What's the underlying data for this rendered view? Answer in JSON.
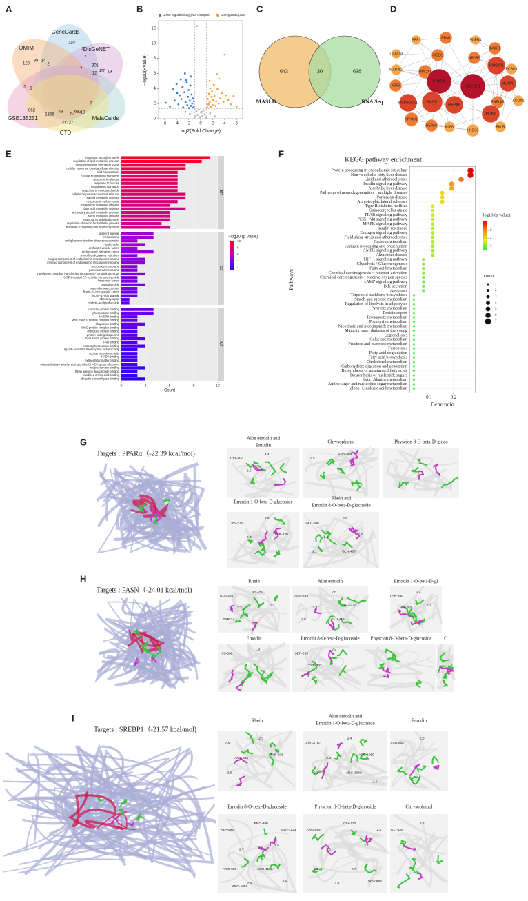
{
  "A": {
    "label": "A",
    "sets": [
      "GeneCards",
      "DisGeNET",
      "OMIM",
      "MalaCards",
      "GSE135251",
      "CTD"
    ],
    "colors": [
      "#9ec9e8",
      "#d8a6d8",
      "#f3b27a",
      "#a9d8d3",
      "#e8a0c0",
      "#f1e27a"
    ],
    "numbers": [
      110,
      3,
      19,
      450,
      301,
      123,
      98,
      14,
      2,
      7,
      12,
      11,
      5,
      1,
      862,
      1356,
      48,
      53,
      682,
      33727,
      18,
      7,
      4
    ]
  },
  "B": {
    "label": "B",
    "type": "scatter",
    "series": [
      {
        "name": "Down regulated(363)",
        "color": "#3a7fd5",
        "x": [
          -5.8,
          -5.1,
          -4.6,
          -4.3,
          -4.0,
          -3.7,
          -3.5,
          -3.2,
          -3.0,
          -2.9,
          -2.7,
          -2.5,
          -2.4,
          -2.2,
          -2.1,
          -2.0,
          -1.9,
          -1.8,
          -1.7,
          -1.6,
          -1.5,
          -1.4,
          -1.3,
          -1.2,
          -1.1,
          -3.9,
          -2.6,
          -3.3,
          -1.6,
          -2.3
        ],
        "y": [
          2.1,
          1.6,
          3.9,
          2.4,
          4.6,
          1.9,
          3.1,
          2.6,
          4.2,
          1.5,
          3.5,
          2.2,
          5.1,
          1.8,
          2.9,
          3.8,
          1.4,
          2.4,
          4.4,
          1.7,
          3.2,
          2.0,
          2.7,
          1.5,
          2.3,
          3.4,
          6.0,
          5.2,
          5.6,
          4.8
        ]
      },
      {
        "name": "Not changed",
        "color": "#b5b5b5",
        "x": [
          -0.9,
          -0.7,
          -0.5,
          -0.3,
          -0.1,
          0.1,
          0.3,
          0.5,
          0.7,
          0.9,
          -1.8,
          -2.5,
          1.6,
          2.4,
          -0.6,
          0.2
        ],
        "y": [
          0.3,
          1.0,
          0.5,
          1.2,
          0.2,
          0.8,
          0.4,
          1.1,
          0.6,
          0.2,
          0.6,
          0.9,
          0.7,
          0.3,
          12.3,
          0.9
        ]
      },
      {
        "name": "Up regulated(305)",
        "color": "#f0a040",
        "x": [
          1.1,
          1.2,
          1.3,
          1.4,
          1.5,
          1.6,
          1.7,
          1.8,
          1.9,
          2.0,
          2.1,
          2.2,
          2.3,
          2.5,
          2.6,
          2.8,
          3.0,
          3.1,
          3.3,
          3.5,
          3.8,
          4.0,
          4.2,
          4.6,
          5.0,
          5.5,
          6.0,
          2.7,
          1.5
        ],
        "y": [
          1.5,
          2.6,
          1.9,
          3.3,
          2.2,
          4.0,
          1.6,
          2.9,
          3.6,
          1.8,
          2.5,
          4.5,
          3.0,
          1.7,
          2.3,
          3.9,
          2.0,
          5.3,
          2.7,
          3.4,
          2.2,
          8.5,
          3.1,
          2.5,
          1.9,
          3.0,
          1.6,
          5.9,
          5.0
        ]
      }
    ],
    "thresholds": {
      "x": [
        -1,
        1
      ],
      "y": 1.3
    },
    "xlabel": "log2(Fold Change)",
    "ylabel": "-log10(Pvalue)",
    "xlim": [
      -7,
      7
    ],
    "ylim": [
      0,
      13
    ],
    "xticks": [
      -6,
      -4,
      -2,
      0,
      2,
      4,
      6
    ],
    "yticks": [
      0,
      2,
      4,
      6,
      8,
      10,
      12
    ]
  },
  "C": {
    "label": "C",
    "sets": [
      "MASLD",
      "RNA Seq"
    ],
    "colors": [
      "#f5c27a",
      "#a8dca0"
    ],
    "counts": [
      643,
      30,
      638
    ]
  },
  "D": {
    "label": "D",
    "nodes": [
      {
        "label": "SPP1",
        "color": "#f7a54a"
      },
      {
        "label": "ERN1",
        "color": "#ee7a36"
      },
      {
        "label": "FGFR4",
        "color": "#f7a54a"
      },
      {
        "label": "LGALS3",
        "color": "#f7a54a"
      },
      {
        "label": "CIDEC",
        "color": "#ee7a36"
      },
      {
        "label": "NR0B2",
        "color": "#ee7a36"
      },
      {
        "label": "INSIG1",
        "color": "#ee7a36"
      },
      {
        "label": "MAP3K2",
        "color": "#f7a54a"
      },
      {
        "label": "HMGCR",
        "color": "#d9442b"
      },
      {
        "label": "PCSK9",
        "color": "#f7a54a"
      },
      {
        "label": "HMOX1",
        "color": "#ee7a36"
      },
      {
        "label": "PPARA",
        "color": "#b5122b"
      },
      {
        "label": "SREBF1",
        "color": "#b5122b"
      },
      {
        "label": "MLXIPL",
        "color": "#d9442b"
      },
      {
        "label": "XBP1",
        "color": "#ee7a36"
      },
      {
        "label": "FASN",
        "color": "#d9442b"
      },
      {
        "label": "HSPA5",
        "color": "#d9442b"
      },
      {
        "label": "PNPLA3",
        "color": "#ee7a36"
      },
      {
        "label": "ACOX1",
        "color": "#f7a54a"
      },
      {
        "label": "HSP90AA1",
        "color": "#d9442b"
      },
      {
        "label": "PLIN2",
        "color": "#d9442b"
      },
      {
        "label": "HYOU1",
        "color": "#ee7a36"
      },
      {
        "label": "HSPA8",
        "color": "#ee7a36"
      },
      {
        "label": "KLF6",
        "color": "#f7a54a"
      },
      {
        "label": "PKLR",
        "color": "#f7a54a"
      },
      {
        "label": "HKDC1",
        "color": "#f7a54a"
      }
    ]
  },
  "E": {
    "label": "E",
    "type": "bar",
    "xlabel": "Count",
    "xlim": [
      0,
      12
    ],
    "xticks": [
      0,
      3,
      6,
      9,
      12
    ],
    "legend_title": "−log10 (p value)",
    "clim": [
      1,
      10
    ],
    "legend_ticks": [
      2,
      4,
      6,
      8,
      10
    ],
    "groups": [
      {
        "name": "BP",
        "terms": [
          "response to nutrient levels",
          "regulation of lipid metabolic process",
          "cellular response to nutrient levels",
          "cellular response to extracellular stimulus",
          "lipid homeostasis",
          "cellular response to starvation",
          "response to glucose",
          "response to hexose",
          "response to starvation",
          "response to monosaccharide",
          "cellular response to external stimulus",
          "steroid metabolic process",
          "response to carbohydrate",
          "cholesterol metabolic process",
          "fatty acid metabolic process",
          "secondary alcohol metabolic process",
          "sterol metabolic process",
          "response to unfolded protein",
          "regulation of steroid biosynthetic process",
          "response to topologically incorrect protein"
        ],
        "counts": [
          11,
          10,
          8,
          8,
          7,
          7,
          7,
          7,
          7,
          7,
          8,
          8,
          7,
          6,
          8,
          6,
          6,
          6,
          5,
          6
        ],
        "neglogp": [
          10,
          9.6,
          9.2,
          9,
          8.8,
          8.6,
          8.4,
          8.3,
          8.2,
          8.1,
          8,
          7.9,
          7.8,
          7.7,
          7.6,
          7.5,
          7.4,
          7.3,
          7.2,
          7.1
        ]
      },
      {
        "name": "CC",
        "terms": [
          "pigment granule",
          "melanosome",
          "endoplasmic reticulum chaperone complex",
          "lipid droplet",
          "endocytic vesicle lumen",
          "endoplasmic reticulum lumen",
          "smooth endoplasmic reticulum",
          "integral component of endoplasmic reticulum membrane",
          "intrinsic component of endoplasmic reticulum membrane",
          "microbody membrane",
          "peroxisomal membrane",
          "transferase complex, transferring phosphorus−containing groups",
          "COPII−coated ER to Golgi transport vesicle",
          "lysosomal lumen",
          "coated vesicle",
          "protein kinase complex",
          "ficolin−1−rich granule lumen",
          "ficolin−1−rich granule",
          "ribbon synapse",
          "clathrin−sculpted vesicle"
        ],
        "counts": [
          4,
          4,
          2,
          3,
          2,
          4,
          2,
          3,
          3,
          2,
          2,
          3,
          2,
          2,
          3,
          2,
          2,
          2,
          1,
          1
        ],
        "neglogp": [
          5,
          4.9,
          4.8,
          4.7,
          4.6,
          4.5,
          4.4,
          4.3,
          4.2,
          4.1,
          4,
          3.9,
          3.8,
          3.7,
          3.6,
          3.5,
          3.4,
          3.3,
          3.2,
          3.1
        ]
      },
      {
        "name": "MF",
        "terms": [
          "unfolded protein binding",
          "phosphatase binding",
          "NADPH binding",
          "MHC class II protein complex binding",
          "chaperone binding",
          "MHC protein complex binding",
          "misfolded protein binding",
          "protein folding chaperone",
          "heat shock protein binding",
          "FAD binding",
          "protein phosphatase binding",
          "ligand−activated transcription factor activity",
          "nuclear receptor activity",
          "NADP binding",
          "extracellular matrix binding",
          "oxidoreductase activity, acting on the CH−CH group of donors",
          "magnesium ion binding",
          "flavin adenine dinucleotide binding",
          "modified amino acid binding",
          "ubiquitin protein ligase binding"
        ],
        "counts": [
          4,
          4,
          2,
          2,
          3,
          2,
          2,
          2,
          3,
          2,
          3,
          2,
          2,
          2,
          2,
          2,
          3,
          2,
          2,
          3
        ],
        "neglogp": [
          3.4,
          3.3,
          3.2,
          3.1,
          3,
          2.9,
          2.8,
          2.7,
          2.6,
          2.5,
          2.4,
          2.3,
          2.2,
          2.1,
          2,
          1.9,
          1.8,
          1.7,
          1.6,
          1.5
        ]
      }
    ]
  },
  "F": {
    "label": "F",
    "type": "scatter",
    "title": "KEGG pathway enrichment",
    "xlabel": "Gene ratio",
    "ylabel": "Pathways",
    "xlim": [
      0.02,
      0.29
    ],
    "xticks": [
      0.1,
      0.2
    ],
    "color_title": "−log10 (p value)",
    "clim": [
      1,
      8.5
    ],
    "color_ticks": [
      2,
      4,
      6
    ],
    "size_title": "count",
    "size_ticks": [
      1,
      2,
      3,
      4,
      5,
      6,
      7
    ],
    "pathways": [
      "Protein processing in endoplasmic reticulum",
      "Non−alcoholic fatty liver disease",
      "Lipid and atherosclerosis",
      "Insulin signaling pathway",
      "Alcoholic liver disease",
      "Pathways of neurodegeneration − multiple diseases",
      "Parkinson disease",
      "Amyotrophic lateral sclerosis",
      "Type II diabetes mellitus",
      "Spinocerebellar ataxia",
      "PPAR signaling pathway",
      "PI3K−Akt signaling pathway",
      "MAPK signaling pathway",
      "Insulin resistance",
      "Estrogen signaling pathway",
      "Fluid shear stress and atherosclerosis",
      "Carbon metabolism",
      "Antigen processing and presentation",
      "AMPK signaling pathway",
      "Alzheimer disease",
      "HIF−1 signaling pathway",
      "Glycolysis / Gluconeogenesis",
      "Fatty acid metabolism",
      "Chemical carcinogenesis − receptor activation",
      "Chemical carcinogenesis − reactive oxygen species",
      "cAMP signaling pathway",
      "Bile secretion",
      "Apoptosis",
      "Terpenoid backbone biosynthesis",
      "Starch and sucrose metabolism",
      "Regulation of lipolysis in adipocytes",
      "Pyruvate metabolism",
      "Protein export",
      "Propanoate metabolism",
      "Porphyrin metabolism",
      "Nicotinate and nicotinamide metabolism",
      "Maturity onset diabetes of the young",
      "Legionellosis",
      "Galactose metabolism",
      "Fructose and mannose metabolism",
      "Ferroptosis",
      "Fatty acid degradation",
      "Fatty acid biosynthesis",
      "Cholesterol metabolism",
      "Carbohydrate digestion and absorption",
      "Biosynthesis of unsaturated fatty acids",
      "Biosynthesis of nucleotide sugars",
      "beta−Alanine metabolism",
      "Amino sugar and nucleotide sugar metabolism",
      "alpha−Linolenic acid metabolism"
    ],
    "gene_ratio": [
      0.269,
      0.269,
      0.231,
      0.192,
      0.192,
      0.154,
      0.154,
      0.154,
      0.115,
      0.115,
      0.115,
      0.115,
      0.115,
      0.115,
      0.115,
      0.115,
      0.115,
      0.115,
      0.115,
      0.115,
      0.077,
      0.077,
      0.077,
      0.077,
      0.077,
      0.077,
      0.077,
      0.077,
      0.038,
      0.038,
      0.038,
      0.038,
      0.038,
      0.038,
      0.038,
      0.038,
      0.038,
      0.038,
      0.038,
      0.038,
      0.038,
      0.038,
      0.038,
      0.038,
      0.038,
      0.038,
      0.038,
      0.038,
      0.038,
      0.038
    ],
    "counts": [
      7,
      7,
      6,
      5,
      5,
      4,
      4,
      4,
      3,
      3,
      3,
      3,
      3,
      3,
      3,
      3,
      3,
      3,
      3,
      3,
      2,
      2,
      2,
      2,
      2,
      2,
      2,
      2,
      1,
      1,
      1,
      1,
      1,
      1,
      1,
      1,
      1,
      1,
      1,
      1,
      1,
      1,
      1,
      1,
      1,
      1,
      1,
      1,
      1,
      1
    ],
    "neglogp": [
      8.5,
      8.3,
      6.3,
      5.5,
      5.2,
      4,
      3.9,
      3.9,
      3.2,
      3.1,
      3.1,
      3,
      3,
      2.9,
      2.9,
      2.8,
      2.8,
      2.7,
      2.6,
      2.5,
      2.2,
      2.1,
      2.1,
      2,
      2,
      1.9,
      1.8,
      1.7,
      1.3,
      1.3,
      1.3,
      1.3,
      1.2,
      1.2,
      1.2,
      1.2,
      1.2,
      1.2,
      1.1,
      1.1,
      1.1,
      1.1,
      1.1,
      1.1,
      1.1,
      1.1,
      1,
      1,
      1,
      1
    ]
  },
  "G": {
    "label": "G",
    "target": "Targets : PPARα（-22.39 kcal/mol)",
    "images": [
      {
        "title": [
          "Aloe emodin and",
          "Emodin"
        ],
        "labels": [
          "THR-307",
          "2.4",
          "2.5"
        ]
      },
      {
        "title": [
          "Chrysophanol"
        ],
        "labels": [
          "2.5",
          "ARG-465"
        ]
      },
      {
        "title": [
          "Physcion 8-O-beta-D-gluco"
        ],
        "labels": []
      },
      {
        "title": [
          "Emodin 1-O-beta-D-glucoside"
        ],
        "labels": [
          "CYS-275",
          "2.5",
          "2.3",
          "THR-279"
        ]
      },
      {
        "title": [
          "Rhein and",
          "Emodin 8-O-beta-D-glucoside"
        ],
        "labels": [
          "GLU-396",
          "2.6",
          "2.1",
          "2.3",
          "2.1",
          "GLN-465"
        ]
      }
    ]
  },
  "H": {
    "label": "H",
    "target": "Targets : FASN（-24.01 kcal/mol)",
    "images": [
      {
        "title": [
          "Rhein"
        ],
        "labels": [
          "GLU-251",
          "ILE-250",
          "2.2",
          "2.3",
          "TYR-34"
        ]
      },
      {
        "title": [
          "Aloe emodin"
        ],
        "labels": [
          "ARG-225",
          "2.6",
          "2.3",
          "GLU-272",
          "2.5",
          "GLU-415"
        ]
      },
      {
        "title": [
          "Emodin 1-O-beta-D-gl"
        ],
        "labels": [
          "THR-250",
          "2.4",
          "HIS-252",
          "2.3"
        ]
      },
      {
        "title": [
          "Emodin"
        ],
        "labels": [
          "HIS-350",
          "1.9"
        ]
      },
      {
        "title": [
          "Emodin 8-O-beta-D-glucoside"
        ],
        "labels": [
          "SER-299",
          "2.2",
          "TYR-307"
        ]
      },
      {
        "title": [
          "Physcion 8-O-beta-D-glucoside"
        ],
        "labels": []
      },
      {
        "title": [
          "C"
        ],
        "labels": []
      }
    ]
  },
  "I": {
    "label": "I",
    "target": "Targets : SREBP1（-21.57 kcal/mol)",
    "images": [
      {
        "title": [
          "Rhein"
        ],
        "labels": [
          "2.4",
          "2.5",
          "ARG-336",
          "TYR-335",
          "1.9"
        ]
      },
      {
        "title": [
          "Aloe emodin and",
          "Emodin 1-O-beta-D-glucoside"
        ],
        "labels": [
          "ARG-1063",
          "2.4",
          "2.8",
          "ARG-1059",
          "2.3",
          "ARG-1080",
          "2.3"
        ]
      },
      {
        "title": [
          "Emodin"
        ],
        "labels": [
          "ASN-844",
          "2.3"
        ]
      },
      {
        "title": [
          "Emodin 8-O-beta-D-glucoside"
        ],
        "labels": [
          "ALA-992",
          "PRO-990",
          "2.7",
          "2.6",
          "ARG-986",
          "ARG-1122",
          "2.0",
          "2.4",
          "GLN-1133",
          "ARG-1059"
        ]
      },
      {
        "title": [
          "Physcion 8-O-beta-D-glucoside"
        ],
        "labels": [
          "ARG-898",
          "GLY-112",
          "2.3",
          "2.4",
          "2.0",
          "2.7",
          "ARG-888",
          "1.8",
          "2.5"
        ]
      },
      {
        "title": [
          "Chrysophanol"
        ],
        "labels": [
          "GLY-164",
          "2.6"
        ]
      }
    ]
  }
}
